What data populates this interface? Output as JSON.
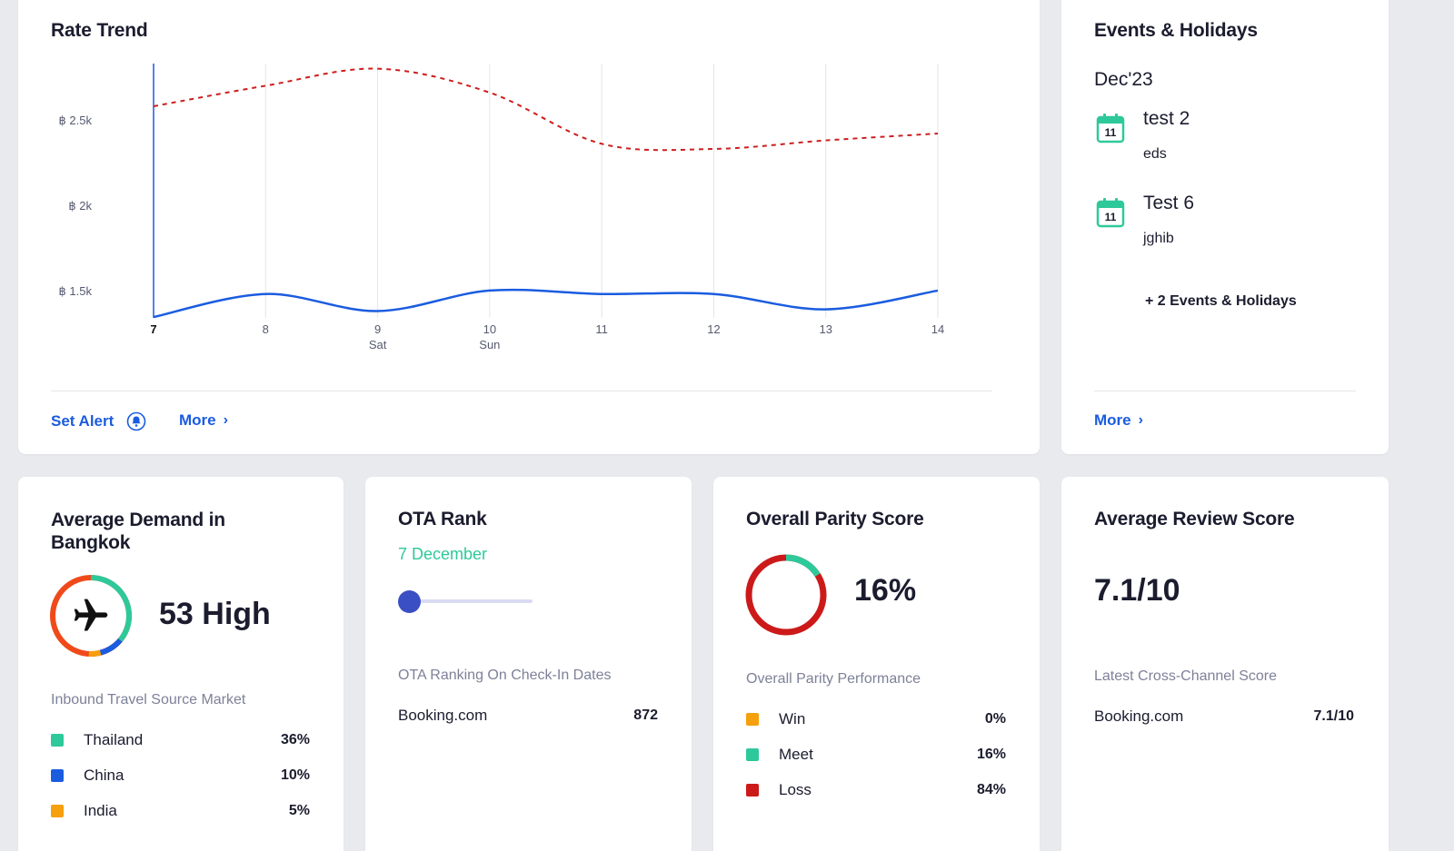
{
  "rate_trend": {
    "title": "Rate Trend",
    "set_alert_label": "Set Alert",
    "more_label": "More",
    "chart_data": {
      "type": "line",
      "x": [
        "7",
        "8",
        "9",
        "10",
        "11",
        "12",
        "13",
        "14"
      ],
      "x_sublabels": [
        "",
        "",
        "Sat",
        "Sun",
        "",
        "",
        "",
        ""
      ],
      "y_tick_labels": [
        "฿ 1.5k",
        "฿ 2k",
        "฿ 2.5k"
      ],
      "y_ticks": [
        1500,
        2000,
        2500
      ],
      "ylim": [
        1340,
        2830
      ],
      "series": [
        {
          "style": "dashed",
          "color": "#cc1f1f",
          "values": [
            2580,
            2700,
            2800,
            2660,
            2360,
            2330,
            2380,
            2420
          ]
        },
        {
          "style": "solid",
          "color": "#1a5ce0",
          "values": [
            1345,
            1480,
            1380,
            1500,
            1480,
            1480,
            1390,
            1500
          ]
        }
      ],
      "grid": true
    }
  },
  "events": {
    "title": "Events & Holidays",
    "month": "Dec'23",
    "items": [
      {
        "day": "11",
        "name": "test 2",
        "desc": "eds"
      },
      {
        "day": "11",
        "name": "Test 6",
        "desc": "jghib"
      }
    ],
    "extra": "+ 2 Events & Holidays",
    "more_label": "More"
  },
  "demand": {
    "title_line1": "Average Demand in",
    "title_line2": "Bangkok",
    "value": "53 High",
    "subtitle": "Inbound Travel Source Market",
    "items": [
      {
        "name": "Thailand",
        "value": "36%",
        "color": "#2ec99a"
      },
      {
        "name": "China",
        "value": "10%",
        "color": "#1a5ce0"
      },
      {
        "name": "India",
        "value": "5%",
        "color": "#f5a00c"
      }
    ]
  },
  "ota": {
    "title": "OTA Rank",
    "date": "7 December",
    "subtitle": "OTA Ranking On Check-In Dates",
    "source": "Booking.com",
    "rank": "872"
  },
  "parity": {
    "title": "Overall Parity Score",
    "value": "16%",
    "meet_fraction": 0.16,
    "subtitle": "Overall Parity Performance",
    "items": [
      {
        "name": "Win",
        "value": "0%",
        "color": "#f5a00c"
      },
      {
        "name": "Meet",
        "value": "16%",
        "color": "#2ec99a"
      },
      {
        "name": "Loss",
        "value": "84%",
        "color": "#cc1a1a"
      }
    ]
  },
  "review": {
    "title": "Average Review Score",
    "value": "7.1/10",
    "subtitle": "Latest Cross-Channel Score",
    "source": "Booking.com",
    "score": "7.1/10"
  }
}
